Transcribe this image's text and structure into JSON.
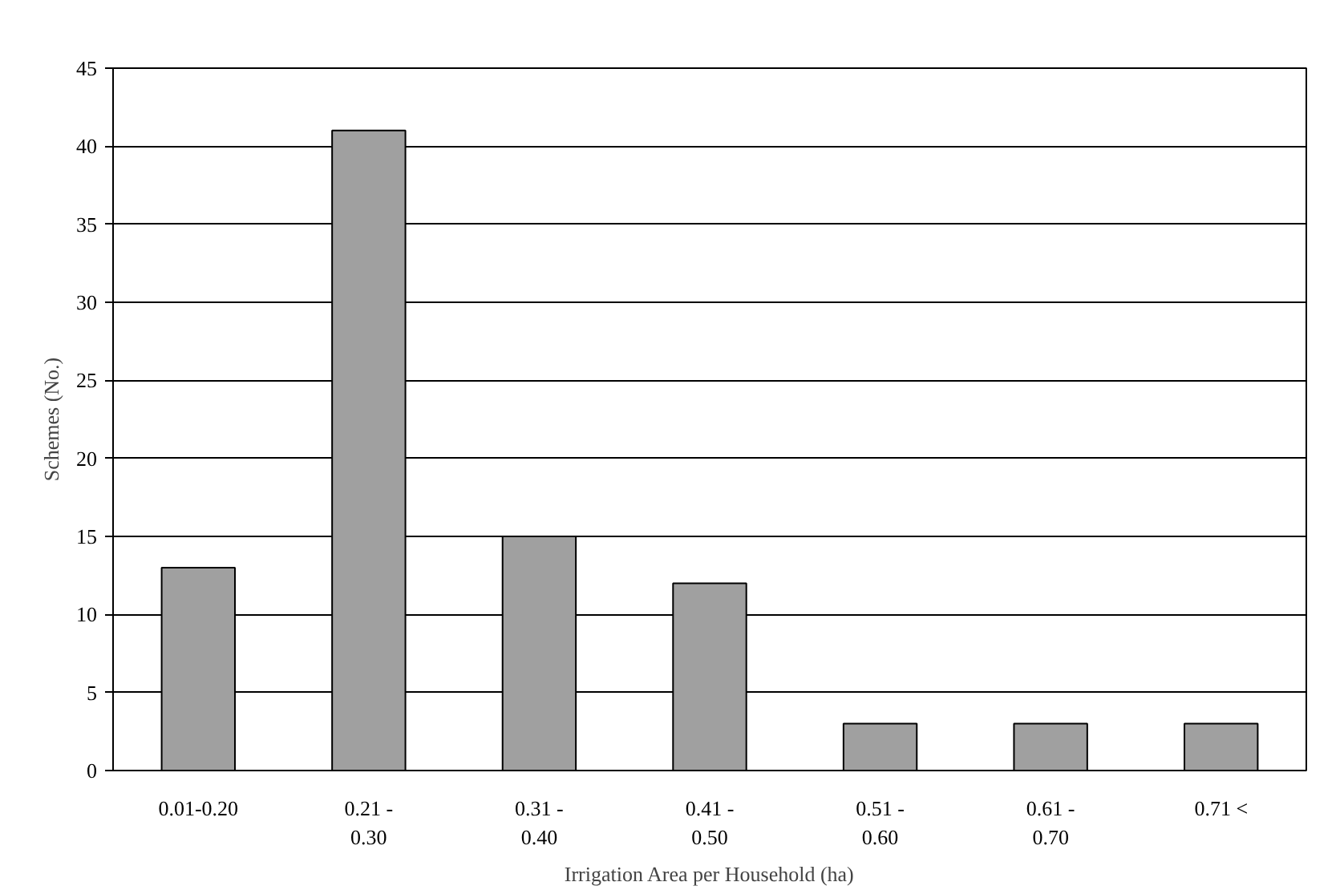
{
  "chart_data": {
    "type": "bar",
    "xlabel": "Irrigation Area per Household (ha)",
    "ylabel": "Schemes (No.)",
    "categories": [
      "0.01-0.20",
      "0.21 -\n0.30",
      "0.31 -\n0.40",
      "0.41 -\n0.50",
      "0.51 -\n0.60",
      "0.61 -\n0.70",
      "0.71 <"
    ],
    "values": [
      13,
      41,
      15,
      12,
      3,
      3,
      3
    ],
    "color": "#a0a0a0",
    "ylim": [
      0,
      45
    ],
    "yticks": [
      0,
      5,
      10,
      15,
      20,
      25,
      30,
      35,
      40,
      45
    ],
    "grid": "y"
  }
}
